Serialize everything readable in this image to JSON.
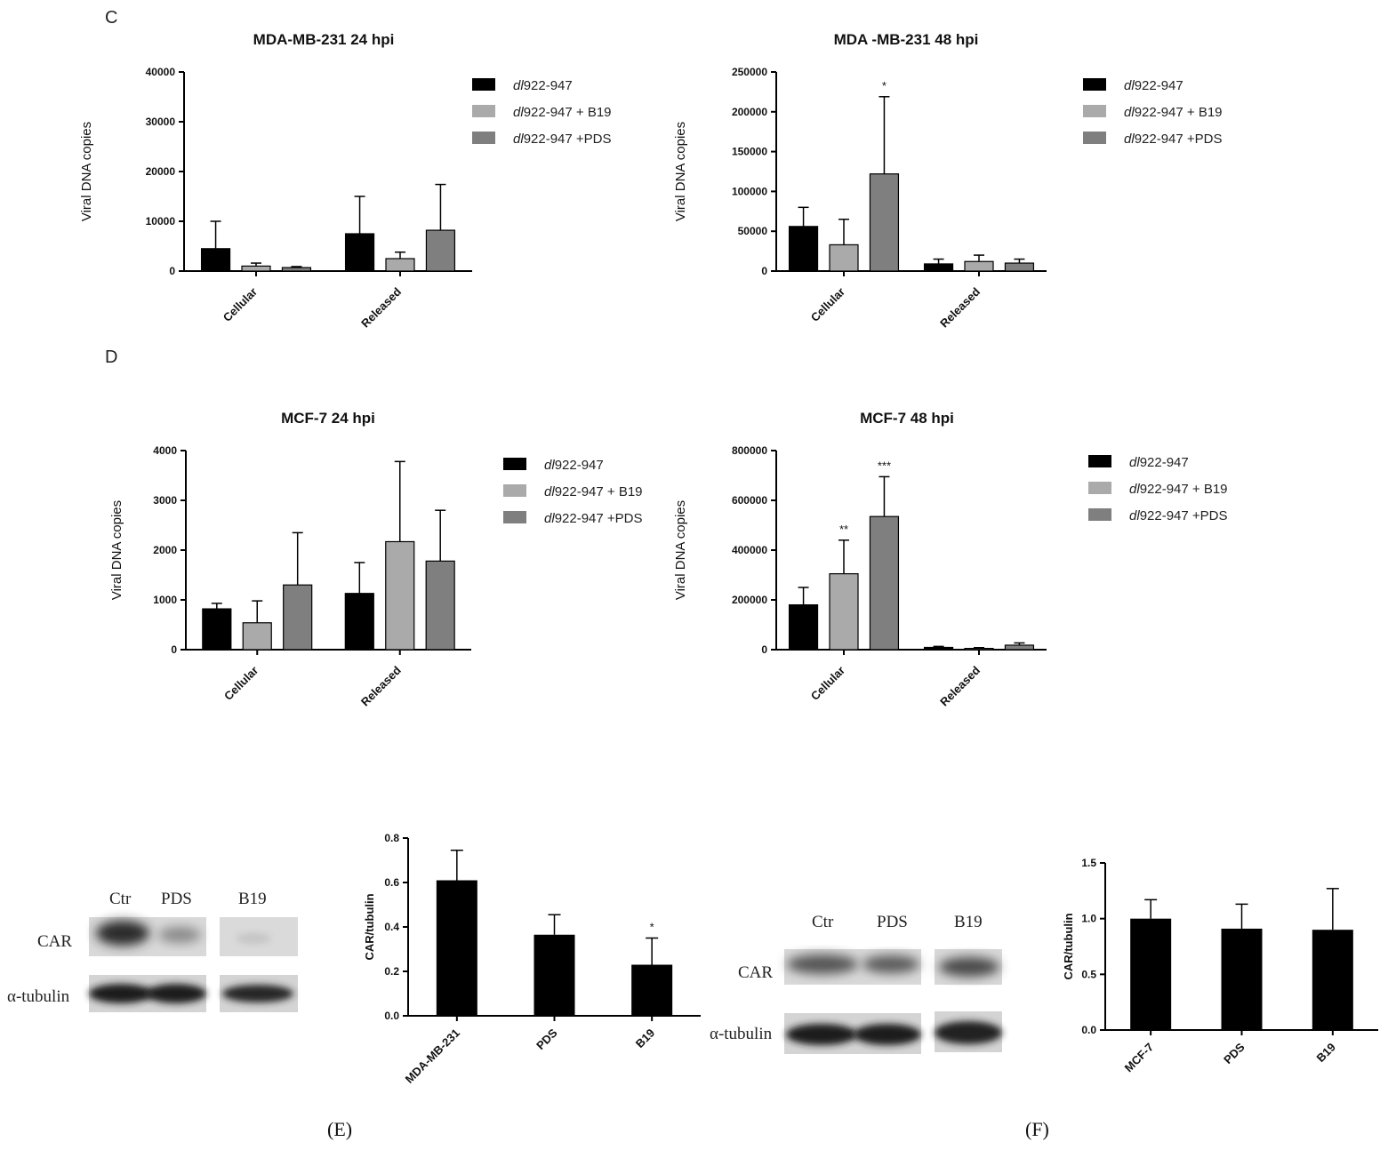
{
  "colors": {
    "series": [
      "#000000",
      "#aaaaaa",
      "#7f7f7f"
    ],
    "axis": "#000000",
    "bar_black": "#000000"
  },
  "panels": {
    "C": "C",
    "D": "D",
    "E": "(E)",
    "F": "(F)"
  },
  "legend_labels": [
    [
      "dl",
      "922-947"
    ],
    [
      "dl",
      "922-947 + B19"
    ],
    [
      "dl",
      "922-947 +PDS"
    ]
  ],
  "chart_data": [
    {
      "id": "c1",
      "type": "bar",
      "title": "MDA-MB-231 24 hpi",
      "ylabel": "Viral DNA copies",
      "ylim": [
        0,
        40000
      ],
      "yticks": [
        "0",
        "10000",
        "20000",
        "30000",
        "40000"
      ],
      "categories": [
        "Cellular",
        "Released"
      ],
      "series": [
        {
          "values": [
            4500,
            7500
          ],
          "errors": [
            5500,
            7500
          ]
        },
        {
          "values": [
            1000,
            2500
          ],
          "errors": [
            600,
            1300
          ]
        },
        {
          "values": [
            700,
            8200
          ],
          "errors": [
            200,
            9200
          ]
        }
      ],
      "significance": [
        "",
        "",
        "",
        "",
        "",
        ""
      ]
    },
    {
      "id": "c2",
      "type": "bar",
      "title": "MDA -MB-231 48 hpi",
      "ylabel": "Viral DNA copies",
      "ylim": [
        0,
        250000
      ],
      "yticks": [
        "0",
        "50000",
        "100000",
        "150000",
        "200000",
        "250000"
      ],
      "categories": [
        "Cellular",
        "Released"
      ],
      "series": [
        {
          "values": [
            56000,
            9000
          ],
          "errors": [
            24000,
            6000
          ]
        },
        {
          "values": [
            33000,
            12000
          ],
          "errors": [
            32000,
            8000
          ]
        },
        {
          "values": [
            122000,
            10000
          ],
          "errors": [
            97000,
            5000
          ]
        }
      ],
      "significance": [
        "",
        "",
        "*",
        "",
        "",
        ""
      ]
    },
    {
      "id": "d1",
      "type": "bar",
      "title": "MCF-7 24 hpi",
      "ylabel": "Viral DNA copies",
      "ylim": [
        0,
        4000
      ],
      "yticks": [
        "0",
        "1000",
        "2000",
        "3000",
        "4000"
      ],
      "categories": [
        "Cellular",
        "Released"
      ],
      "series": [
        {
          "values": [
            820,
            1130
          ],
          "errors": [
            110,
            620
          ]
        },
        {
          "values": [
            540,
            2170
          ],
          "errors": [
            440,
            1610
          ]
        },
        {
          "values": [
            1300,
            1780
          ],
          "errors": [
            1050,
            1020
          ]
        }
      ],
      "significance": [
        "",
        "",
        "",
        "",
        "",
        ""
      ]
    },
    {
      "id": "d2",
      "type": "bar",
      "title": "MCF-7 48 hpi",
      "ylabel": "Viral DNA copies",
      "ylim": [
        0,
        800000
      ],
      "yticks": [
        "0",
        "200000",
        "400000",
        "600000",
        "800000"
      ],
      "categories": [
        "Cellular",
        "Released"
      ],
      "series": [
        {
          "values": [
            180000,
            9000
          ],
          "errors": [
            70000,
            4000
          ]
        },
        {
          "values": [
            305000,
            5000
          ],
          "errors": [
            135000,
            3000
          ]
        },
        {
          "values": [
            535000,
            18000
          ],
          "errors": [
            160000,
            9000
          ]
        }
      ],
      "significance": [
        "",
        "**",
        "***",
        "",
        "",
        ""
      ]
    },
    {
      "id": "e",
      "type": "bar",
      "title": "",
      "ylabel": "CAR/tubulin",
      "ylim": [
        0,
        0.8
      ],
      "yticks": [
        "0.0",
        "0.2",
        "0.4",
        "0.6",
        "0.8"
      ],
      "categories": [
        "MDA-MB-231",
        "PDS",
        "B19"
      ],
      "values": [
        0.61,
        0.365,
        0.23
      ],
      "errors": [
        0.135,
        0.09,
        0.12
      ],
      "significance": [
        "",
        "",
        "*"
      ]
    },
    {
      "id": "f",
      "type": "bar",
      "title": "",
      "ylabel": "CAR/tubulin",
      "ylim": [
        0,
        1.5
      ],
      "yticks": [
        "0.0",
        "0.5",
        "1.0",
        "1.5"
      ],
      "categories": [
        "MCF-7",
        "PDS",
        "B19"
      ],
      "values": [
        1.0,
        0.91,
        0.9
      ],
      "errors": [
        0.17,
        0.22,
        0.37
      ],
      "significance": [
        "",
        "",
        ""
      ]
    }
  ],
  "blots": {
    "E": {
      "lanes": [
        "Ctr",
        "PDS",
        "B19"
      ],
      "rows": [
        "CAR",
        "α-tubulin"
      ]
    },
    "F": {
      "lanes": [
        "Ctr",
        "PDS",
        "B19"
      ],
      "rows": [
        "CAR",
        "α-tubulin"
      ]
    }
  }
}
